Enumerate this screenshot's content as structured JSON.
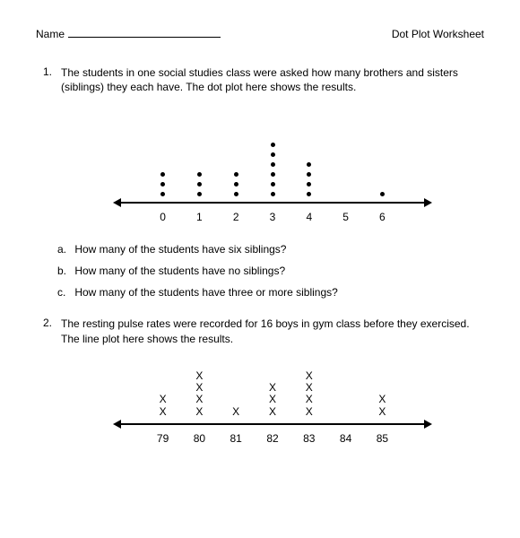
{
  "header": {
    "name_label": "Name",
    "title": "Dot Plot Worksheet"
  },
  "problem1": {
    "number": "1.",
    "text": "The students in one social studies class were asked how many brothers and sisters (siblings) they each have. The dot plot here shows the results.",
    "chart": {
      "type": "dotplot",
      "axis_labels": [
        "0",
        "1",
        "2",
        "3",
        "4",
        "5",
        "6"
      ],
      "counts": [
        3,
        3,
        3,
        6,
        4,
        0,
        1
      ],
      "positions_pct": [
        14,
        26,
        38,
        50,
        62,
        74,
        86
      ],
      "dot_color": "#000000",
      "axis_color": "#000000"
    },
    "questions": [
      {
        "letter": "a.",
        "text": "How many of the students have six siblings?"
      },
      {
        "letter": "b.",
        "text": "How many of the students have no siblings?"
      },
      {
        "letter": "c.",
        "text": "How many of the students have three or more siblings?"
      }
    ]
  },
  "problem2": {
    "number": "2.",
    "text": "The resting pulse rates were recorded for 16 boys in gym class before they exercised.  The line plot here shows the results.",
    "chart": {
      "type": "lineplot",
      "mark": "X",
      "axis_labels": [
        "79",
        "80",
        "81",
        "82",
        "83",
        "84",
        "85"
      ],
      "counts": [
        2,
        4,
        1,
        3,
        4,
        0,
        2
      ],
      "positions_pct": [
        14,
        26,
        38,
        50,
        62,
        74,
        86
      ],
      "axis_color": "#000000"
    }
  }
}
